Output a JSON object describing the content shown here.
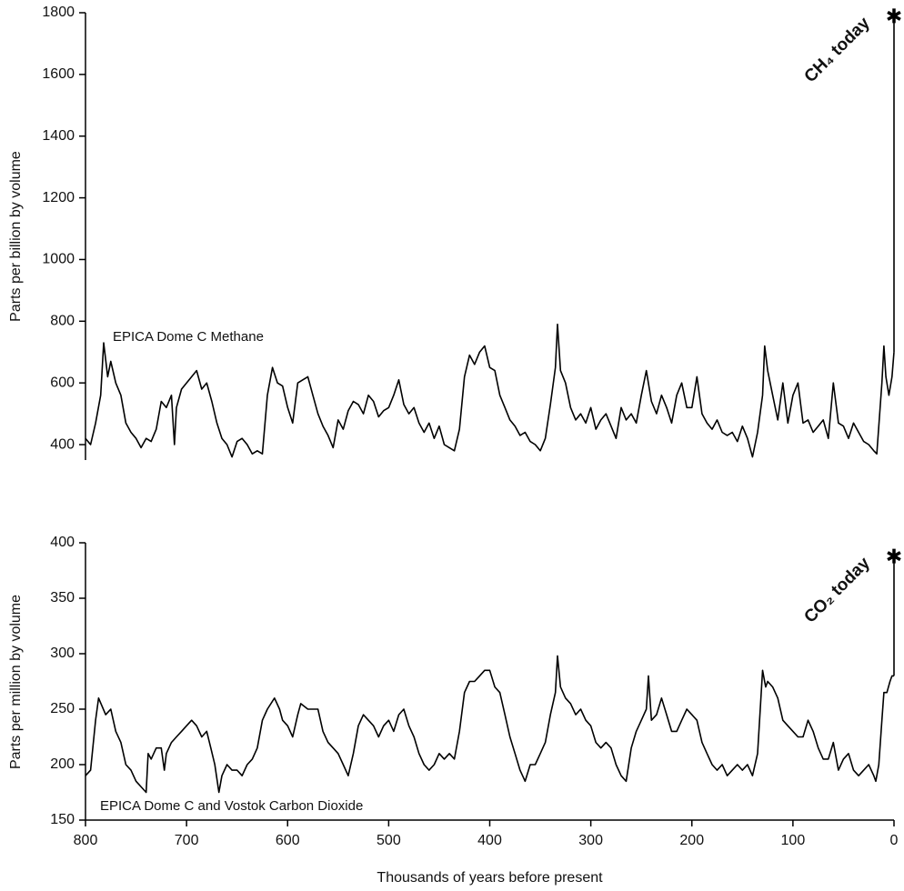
{
  "chart_data": [
    {
      "type": "line",
      "ylabel": "Parts per billion by volume",
      "series_label": "EPICA Dome C Methane",
      "color": "#000000",
      "xlim": [
        800,
        0
      ],
      "ylim": [
        350,
        1800
      ],
      "yticks": [
        400,
        600,
        800,
        1000,
        1200,
        1400,
        1600,
        1800
      ],
      "x": [
        800,
        795,
        790,
        785,
        782,
        778,
        775,
        770,
        765,
        760,
        755,
        750,
        745,
        740,
        735,
        730,
        725,
        720,
        715,
        712,
        710,
        705,
        700,
        695,
        690,
        685,
        680,
        675,
        670,
        665,
        660,
        655,
        650,
        645,
        640,
        635,
        630,
        625,
        620,
        615,
        610,
        605,
        600,
        595,
        590,
        585,
        580,
        575,
        570,
        565,
        560,
        555,
        550,
        545,
        540,
        535,
        530,
        525,
        520,
        515,
        510,
        505,
        500,
        495,
        490,
        485,
        480,
        475,
        470,
        465,
        460,
        455,
        450,
        445,
        440,
        435,
        430,
        425,
        420,
        415,
        410,
        405,
        400,
        395,
        390,
        385,
        380,
        375,
        370,
        365,
        360,
        355,
        350,
        345,
        340,
        335,
        333,
        330,
        325,
        320,
        315,
        310,
        305,
        300,
        295,
        290,
        285,
        280,
        275,
        270,
        265,
        260,
        255,
        250,
        245,
        240,
        235,
        230,
        225,
        220,
        215,
        210,
        205,
        200,
        195,
        190,
        185,
        180,
        175,
        170,
        165,
        160,
        155,
        150,
        145,
        140,
        135,
        130,
        128,
        125,
        120,
        115,
        110,
        105,
        100,
        95,
        90,
        85,
        80,
        75,
        70,
        65,
        60,
        55,
        50,
        45,
        40,
        35,
        30,
        25,
        20,
        17,
        12,
        10,
        8,
        5,
        2,
        0
      ],
      "values": [
        420,
        400,
        470,
        560,
        730,
        620,
        670,
        600,
        560,
        470,
        440,
        420,
        390,
        420,
        410,
        450,
        540,
        520,
        560,
        400,
        520,
        580,
        600,
        620,
        640,
        580,
        600,
        540,
        470,
        420,
        400,
        360,
        410,
        420,
        400,
        370,
        380,
        370,
        560,
        650,
        600,
        590,
        520,
        470,
        600,
        610,
        620,
        560,
        500,
        460,
        430,
        390,
        480,
        450,
        510,
        540,
        530,
        500,
        560,
        540,
        490,
        510,
        520,
        560,
        610,
        530,
        500,
        520,
        470,
        440,
        470,
        420,
        460,
        400,
        390,
        380,
        450,
        620,
        690,
        660,
        700,
        720,
        650,
        640,
        560,
        520,
        480,
        460,
        430,
        440,
        410,
        400,
        380,
        420,
        530,
        650,
        790,
        640,
        600,
        520,
        480,
        500,
        470,
        520,
        450,
        480,
        500,
        460,
        420,
        520,
        480,
        500,
        470,
        560,
        640,
        540,
        500,
        560,
        520,
        470,
        560,
        600,
        520,
        520,
        620,
        500,
        470,
        450,
        480,
        440,
        430,
        440,
        410,
        460,
        420,
        360,
        440,
        560,
        720,
        640,
        560,
        480,
        600,
        470,
        560,
        600,
        470,
        480,
        440,
        460,
        480,
        420,
        600,
        470,
        460,
        420,
        470,
        440,
        410,
        400,
        380,
        370,
        600,
        720,
        620,
        560,
        620,
        700
      ],
      "today": {
        "label": "CH₄ today",
        "x": 0,
        "value": 1790
      }
    },
    {
      "type": "line",
      "ylabel": "Parts per million by volume",
      "xlabel": "Thousands of years before present",
      "series_label": "EPICA Dome C and Vostok Carbon Dioxide",
      "color": "#000000",
      "xlim": [
        800,
        0
      ],
      "xticks": [
        800,
        700,
        600,
        500,
        400,
        300,
        200,
        100,
        0
      ],
      "ylim": [
        150,
        400
      ],
      "yticks": [
        150,
        200,
        250,
        300,
        350,
        400
      ],
      "x": [
        800,
        795,
        790,
        787,
        780,
        775,
        770,
        765,
        760,
        755,
        750,
        745,
        740,
        738,
        735,
        730,
        725,
        722,
        720,
        715,
        710,
        705,
        700,
        695,
        690,
        685,
        680,
        676,
        672,
        668,
        665,
        660,
        655,
        650,
        645,
        640,
        635,
        630,
        625,
        620,
        613,
        608,
        605,
        600,
        595,
        590,
        587,
        580,
        575,
        570,
        565,
        560,
        555,
        550,
        545,
        540,
        535,
        530,
        525,
        520,
        515,
        510,
        505,
        500,
        495,
        490,
        485,
        480,
        475,
        470,
        465,
        460,
        455,
        450,
        445,
        440,
        435,
        430,
        425,
        420,
        415,
        410,
        405,
        400,
        395,
        390,
        385,
        380,
        375,
        370,
        365,
        360,
        355,
        350,
        345,
        340,
        335,
        333,
        330,
        325,
        320,
        315,
        310,
        305,
        300,
        295,
        290,
        285,
        280,
        275,
        270,
        265,
        260,
        255,
        250,
        245,
        243,
        240,
        235,
        230,
        225,
        220,
        215,
        210,
        205,
        200,
        195,
        190,
        185,
        180,
        175,
        170,
        165,
        160,
        155,
        150,
        145,
        140,
        135,
        132,
        130,
        127,
        125,
        120,
        115,
        110,
        105,
        100,
        95,
        90,
        85,
        80,
        75,
        70,
        65,
        60,
        55,
        50,
        45,
        40,
        35,
        30,
        25,
        20,
        18,
        15,
        12,
        10,
        7,
        4,
        2,
        0
      ],
      "values": [
        190,
        195,
        240,
        260,
        245,
        250,
        230,
        220,
        200,
        195,
        185,
        180,
        175,
        210,
        205,
        215,
        215,
        195,
        210,
        220,
        225,
        230,
        235,
        240,
        235,
        225,
        230,
        215,
        200,
        175,
        190,
        200,
        195,
        195,
        190,
        200,
        205,
        215,
        240,
        250,
        260,
        250,
        240,
        235,
        225,
        245,
        255,
        250,
        250,
        250,
        230,
        220,
        215,
        210,
        200,
        190,
        210,
        235,
        245,
        240,
        235,
        225,
        235,
        240,
        230,
        245,
        250,
        235,
        225,
        210,
        200,
        195,
        200,
        210,
        205,
        210,
        205,
        230,
        265,
        275,
        275,
        280,
        285,
        285,
        270,
        265,
        245,
        225,
        210,
        195,
        185,
        200,
        200,
        210,
        220,
        245,
        265,
        298,
        270,
        260,
        255,
        245,
        250,
        240,
        235,
        220,
        215,
        220,
        215,
        200,
        190,
        185,
        215,
        230,
        240,
        250,
        280,
        240,
        245,
        260,
        245,
        230,
        230,
        240,
        250,
        245,
        240,
        220,
        210,
        200,
        195,
        200,
        190,
        195,
        200,
        195,
        200,
        190,
        210,
        255,
        285,
        270,
        275,
        270,
        260,
        240,
        235,
        230,
        225,
        225,
        240,
        230,
        215,
        205,
        205,
        220,
        195,
        205,
        210,
        195,
        190,
        195,
        200,
        190,
        185,
        200,
        240,
        265,
        265,
        275,
        280,
        280
      ],
      "today": {
        "label": "CO₂ today",
        "x": 0,
        "value": 388
      }
    }
  ]
}
